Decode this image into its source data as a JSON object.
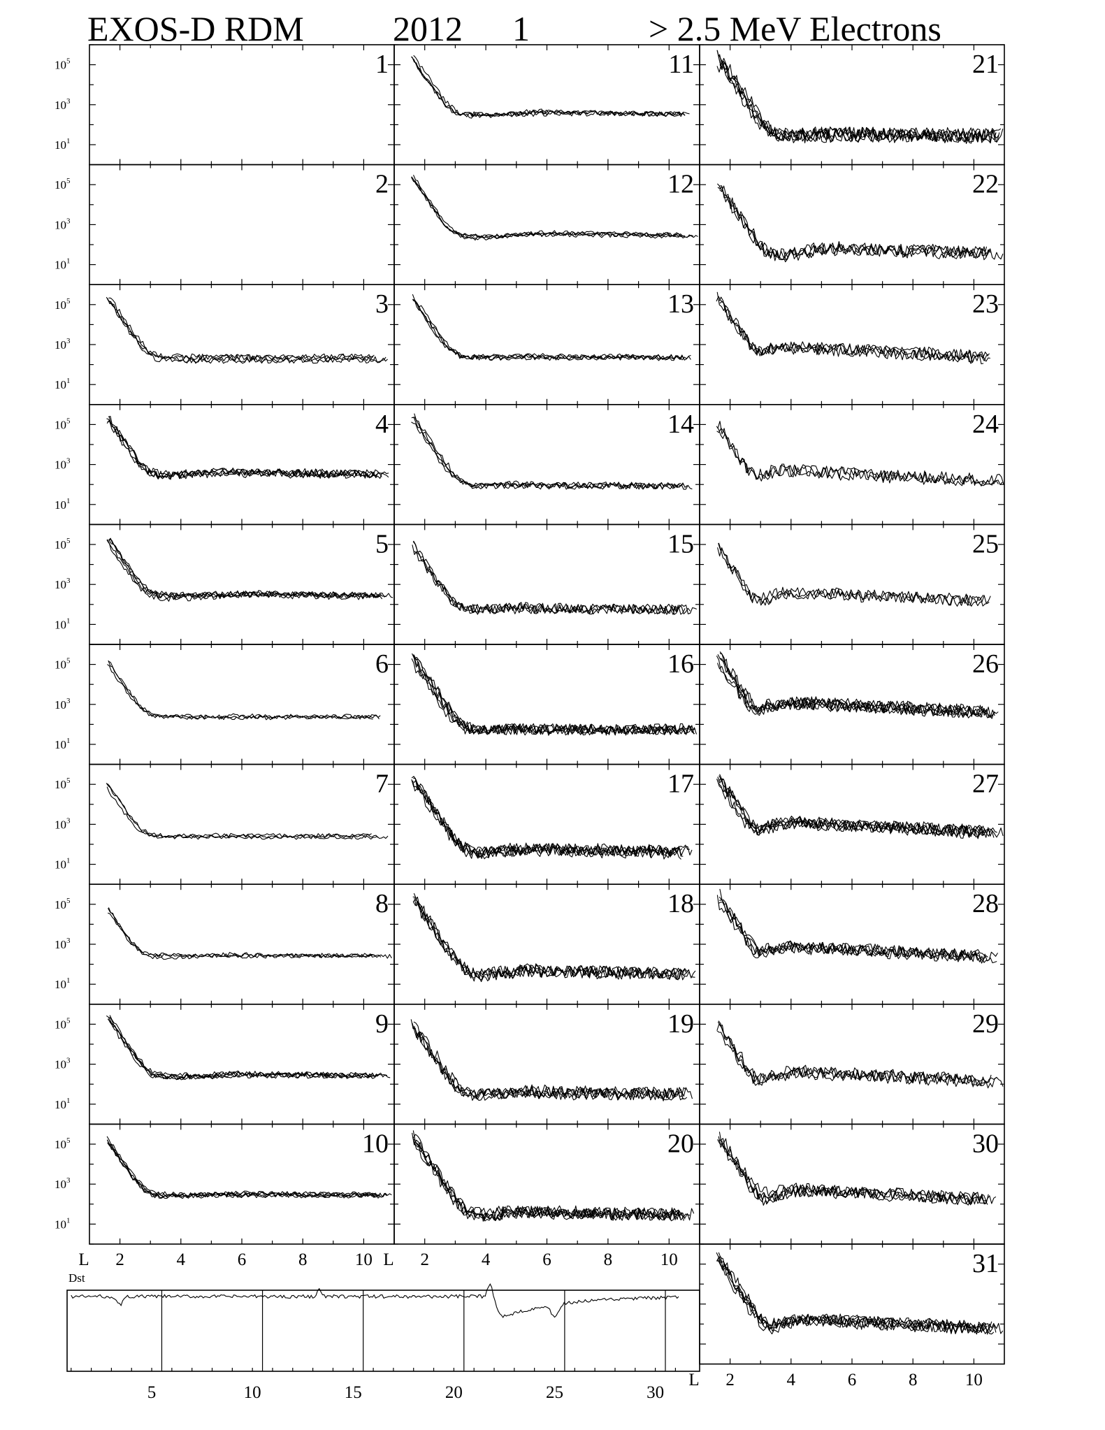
{
  "title": {
    "instrument": "EXOS-D RDM",
    "year": "2012",
    "month": "1",
    "species": "> 2.5  MeV Electrons"
  },
  "chart_data": {
    "type": "line",
    "description_axis": {
      "x_label": "L",
      "x_range": [
        1,
        11
      ],
      "x_ticks": [
        2,
        4,
        6,
        8,
        10
      ],
      "y_scale": "log",
      "y_range": [
        1,
        1000000
      ],
      "y_ticks": [
        "10^1",
        "10^3",
        "10^5"
      ]
    },
    "panels": [
      {
        "day": "1",
        "empty": true
      },
      {
        "day": "2",
        "empty": true
      },
      {
        "day": "3",
        "peak": 200000,
        "floor": 200,
        "hump_L": 0,
        "hump": 0,
        "spread": 1.3,
        "noise": 0.15,
        "curves": 4
      },
      {
        "day": "4",
        "peak": 200000,
        "floor": 250,
        "hump_L": 5.5,
        "hump": 500,
        "spread": 1.3,
        "noise": 0.2,
        "curves": 5
      },
      {
        "day": "5",
        "peak": 200000,
        "floor": 250,
        "hump_L": 5.8,
        "hump": 400,
        "spread": 1.3,
        "noise": 0.15,
        "curves": 5
      },
      {
        "day": "6",
        "peak": 100000,
        "floor": 220,
        "hump_L": 5.8,
        "hump": 300,
        "spread": 1.3,
        "noise": 0.1,
        "curves": 3
      },
      {
        "day": "7",
        "peak": 100000,
        "floor": 250,
        "hump_L": 5.5,
        "hump": 320,
        "spread": 1.3,
        "noise": 0.1,
        "curves": 3
      },
      {
        "day": "8",
        "peak": 40000,
        "floor": 250,
        "hump_L": 6.0,
        "hump": 350,
        "spread": 1.3,
        "noise": 0.1,
        "curves": 3
      },
      {
        "day": "9",
        "peak": 200000,
        "floor": 250,
        "hump_L": 6.0,
        "hump": 380,
        "spread": 1.3,
        "noise": 0.12,
        "curves": 5
      },
      {
        "day": "10",
        "peak": 200000,
        "floor": 250,
        "hump_L": 6.0,
        "hump": 380,
        "spread": 1.3,
        "noise": 0.12,
        "curves": 5
      },
      {
        "day": "11",
        "peak": 200000,
        "floor": 300,
        "hump_L": 6.0,
        "hump": 500,
        "spread": 1.3,
        "noise": 0.12,
        "curves": 4
      },
      {
        "day": "12",
        "peak": 200000,
        "floor": 250,
        "hump_L": 6.0,
        "hump": 450,
        "spread": 1.3,
        "noise": 0.1,
        "curves": 4
      },
      {
        "day": "13",
        "peak": 200000,
        "floor": 200,
        "hump_L": 5.0,
        "hump": 300,
        "spread": 1.3,
        "noise": 0.12,
        "curves": 4
      },
      {
        "day": "14",
        "peak": 200000,
        "floor": 80,
        "hump_L": 5.0,
        "hump": 120,
        "spread": 1.3,
        "noise": 0.15,
        "curves": 4
      },
      {
        "day": "15",
        "peak": 100000,
        "floor": 50,
        "hump_L": 5.0,
        "hump": 80,
        "spread": 1.3,
        "noise": 0.25,
        "curves": 4
      },
      {
        "day": "16",
        "peak": 200000,
        "floor": 50,
        "hump_L": 5.0,
        "hump": 70,
        "spread": 1.3,
        "noise": 0.25,
        "curves": 6
      },
      {
        "day": "17",
        "peak": 200000,
        "floor": 30,
        "hump_L": 5.5,
        "hump": 70,
        "spread": 1.3,
        "noise": 0.3,
        "curves": 6
      },
      {
        "day": "18",
        "peak": 200000,
        "floor": 20,
        "hump_L": 5.5,
        "hump": 60,
        "spread": 1.3,
        "noise": 0.3,
        "curves": 5
      },
      {
        "day": "19",
        "peak": 100000,
        "floor": 25,
        "hump_L": 5.5,
        "hump": 50,
        "spread": 1.3,
        "noise": 0.3,
        "curves": 5
      },
      {
        "day": "20",
        "peak": 200000,
        "floor": 20,
        "hump_L": 5.5,
        "hump": 50,
        "spread": 1.3,
        "noise": 0.3,
        "curves": 6
      },
      {
        "day": "21",
        "peak": 200000,
        "floor": 25,
        "hump_L": 5.5,
        "hump": 40,
        "spread": 1.3,
        "noise": 0.35,
        "curves": 6
      },
      {
        "day": "22",
        "peak": 100000,
        "floor": 20,
        "hump_L": 5.5,
        "hump": 80,
        "spread": 1.3,
        "noise": 0.3,
        "curves": 4
      },
      {
        "day": "23",
        "peak": 200000,
        "floor": 5,
        "hump_L": 4.2,
        "hump": 900,
        "spread": 1.3,
        "noise": 0.3,
        "curves": 4
      },
      {
        "day": "24",
        "peak": 100000,
        "floor": 10,
        "hump_L": 4.0,
        "hump": 600,
        "spread": 1.3,
        "noise": 0.3,
        "curves": 3
      },
      {
        "day": "25",
        "peak": 100000,
        "floor": 8,
        "hump_L": 4.5,
        "hump": 500,
        "spread": 1.3,
        "noise": 0.3,
        "curves": 3
      },
      {
        "day": "26",
        "peak": 200000,
        "floor": 5,
        "hump_L": 4.2,
        "hump": 1500,
        "spread": 1.3,
        "noise": 0.3,
        "curves": 6
      },
      {
        "day": "27",
        "peak": 200000,
        "floor": 5,
        "hump_L": 4.2,
        "hump": 1500,
        "spread": 1.3,
        "noise": 0.3,
        "curves": 6
      },
      {
        "day": "28",
        "peak": 200000,
        "floor": 8,
        "hump_L": 4.2,
        "hump": 900,
        "spread": 1.3,
        "noise": 0.3,
        "curves": 5
      },
      {
        "day": "29",
        "peak": 100000,
        "floor": 8,
        "hump_L": 4.3,
        "hump": 500,
        "spread": 1.3,
        "noise": 0.3,
        "curves": 4
      },
      {
        "day": "30",
        "peak": 200000,
        "floor": 5,
        "hump_L": 4.5,
        "hump": 600,
        "spread": 1.3,
        "noise": 0.3,
        "curves": 5
      },
      {
        "day": "31",
        "peak": 200000,
        "floor": 5,
        "hump_L": 4.5,
        "hump": 200,
        "spread": 1.3,
        "noise": 0.3,
        "curves": 6
      }
    ],
    "dst": {
      "label": "Dst",
      "x_ticks": [
        "5",
        "10",
        "15",
        "20",
        "25",
        "30"
      ]
    }
  },
  "labels": {
    "x_axis_letter": "L",
    "x_ticks": [
      "2",
      "4",
      "6",
      "8",
      "10"
    ],
    "y_ticks": [
      {
        "base": "10",
        "exp": "5"
      },
      {
        "base": "10",
        "exp": "3"
      },
      {
        "base": "10",
        "exp": "1"
      }
    ]
  }
}
